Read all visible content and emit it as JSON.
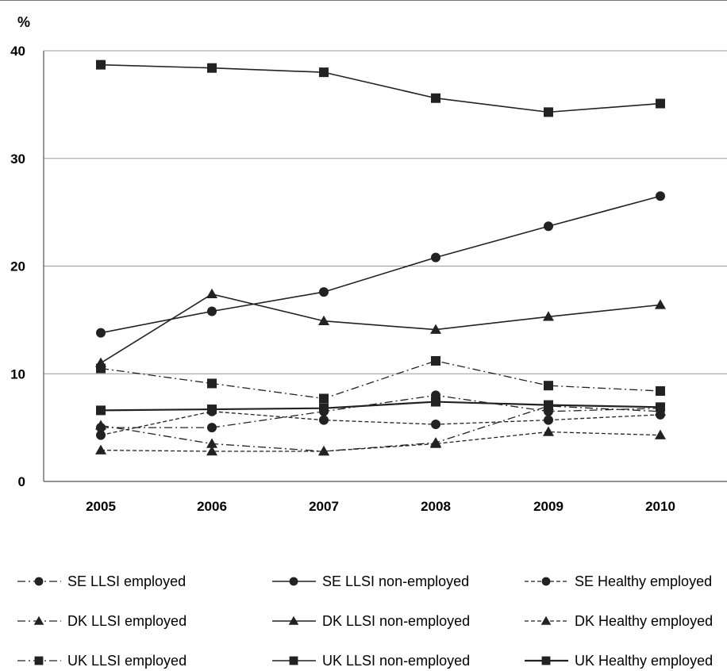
{
  "chart_data": {
    "type": "line",
    "ylabel": "%",
    "x": [
      "2005",
      "2006",
      "2007",
      "2008",
      "2009",
      "2010"
    ],
    "ylim": [
      0,
      40
    ],
    "yticks": [
      "0",
      "10",
      "20",
      "30",
      "40"
    ],
    "grid": "horizontal",
    "legend_position": "bottom",
    "series": [
      {
        "name": "SE LLSI employed",
        "marker": "circle",
        "line": "dashdot",
        "values": [
          5.0,
          5.0,
          6.5,
          8.0,
          6.5,
          6.8
        ]
      },
      {
        "name": "SE LLSI non-employed",
        "marker": "circle",
        "line": "solid",
        "values": [
          13.8,
          15.8,
          17.6,
          20.8,
          23.7,
          26.5
        ]
      },
      {
        "name": "SE Healthy employed",
        "marker": "circle",
        "line": "dashed",
        "values": [
          4.3,
          6.5,
          5.7,
          5.3,
          5.7,
          6.2
        ]
      },
      {
        "name": "DK LLSI employed",
        "marker": "triangle",
        "line": "dashdot",
        "values": [
          5.2,
          3.5,
          2.8,
          3.6,
          7.0,
          6.5
        ]
      },
      {
        "name": "DK LLSI non-employed",
        "marker": "triangle",
        "line": "solid",
        "values": [
          11.0,
          17.4,
          14.9,
          14.1,
          15.3,
          16.4
        ]
      },
      {
        "name": "DK Healthy employed",
        "marker": "triangle",
        "line": "dashed",
        "values": [
          2.9,
          2.8,
          2.8,
          3.5,
          4.6,
          4.3
        ]
      },
      {
        "name": "UK LLSI employed",
        "marker": "square",
        "line": "dashdot",
        "values": [
          10.5,
          9.1,
          7.7,
          11.2,
          8.9,
          8.4
        ]
      },
      {
        "name": "UK LLSI non-employed",
        "marker": "square",
        "line": "solid",
        "values": [
          38.7,
          38.4,
          38.0,
          35.6,
          34.3,
          35.1
        ]
      },
      {
        "name": "UK Healthy employed",
        "marker": "square",
        "line": "solid-thick",
        "values": [
          6.6,
          6.7,
          6.8,
          7.4,
          7.1,
          6.9
        ]
      }
    ]
  },
  "colors": {
    "line": "#222222",
    "grid": "#9a9a9a",
    "axis": "#555555"
  }
}
